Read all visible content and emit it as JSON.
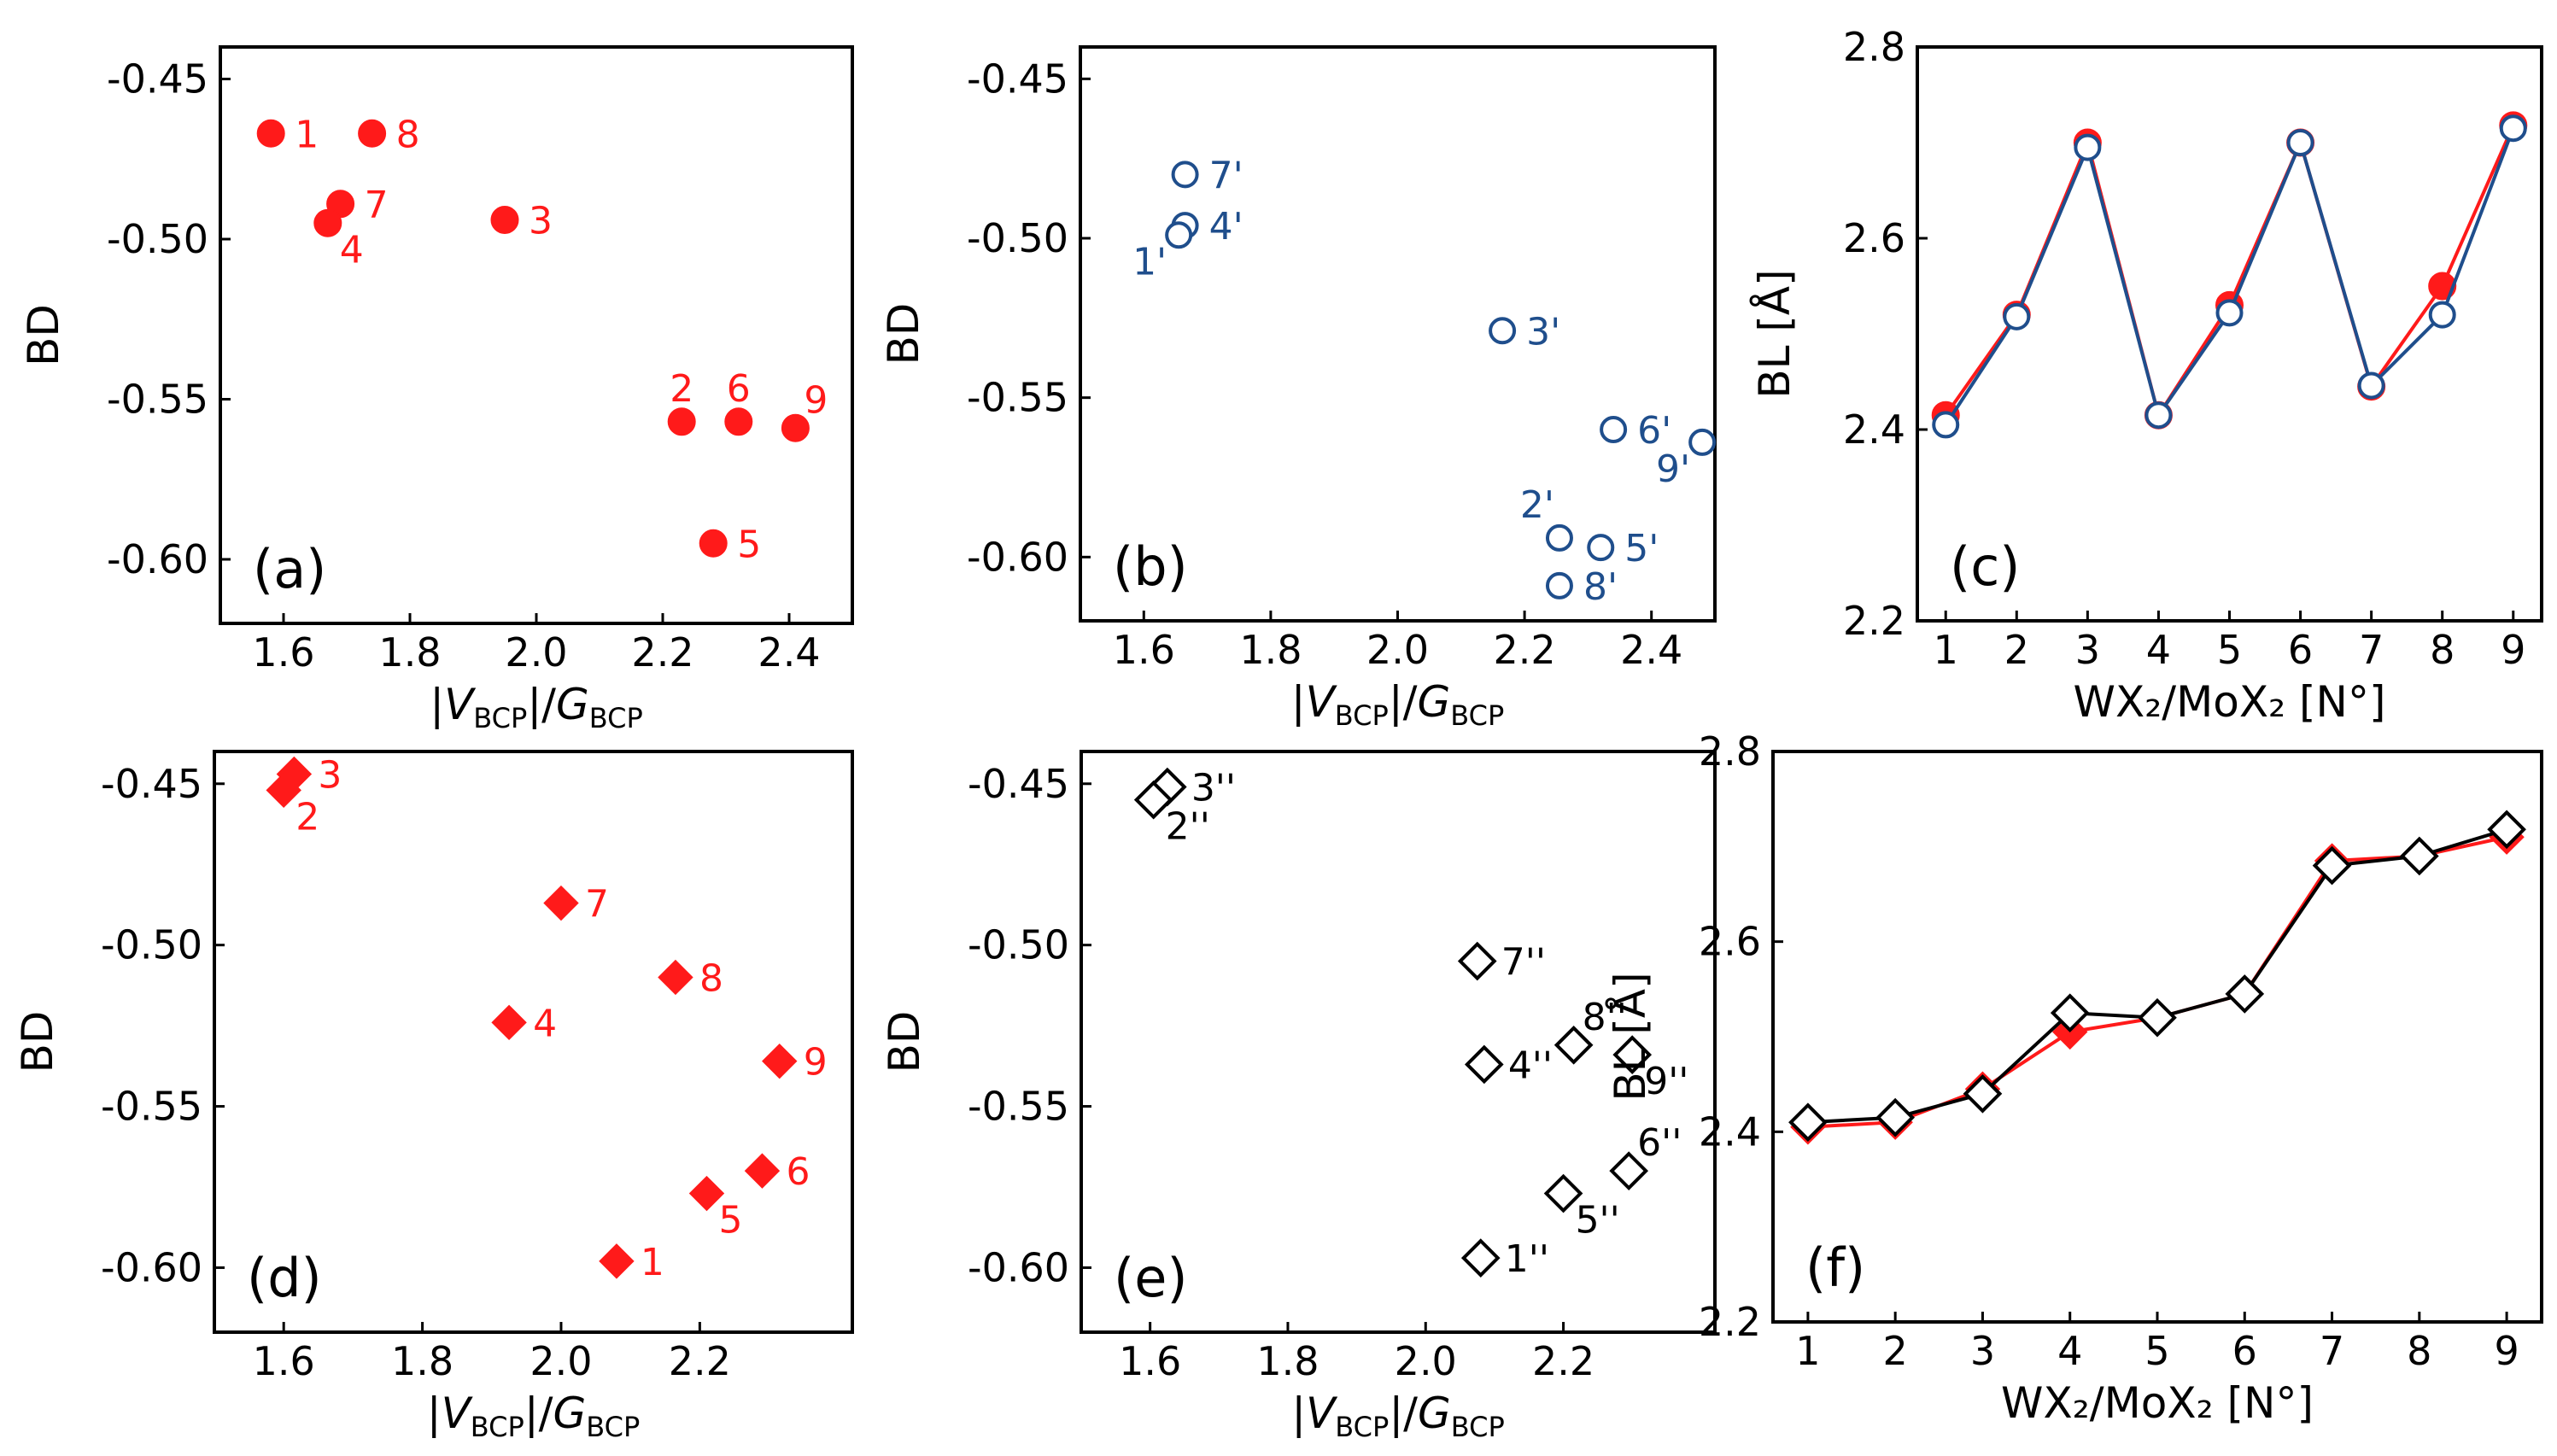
{
  "figure": {
    "colors": {
      "red": "#ff1a1a",
      "blue": "#1f4e8c",
      "black": "#000000",
      "axis": "#000000"
    }
  },
  "chart_data": [
    {
      "id": "a",
      "panel_label": "(a)",
      "type": "scatter",
      "marker": "circle-filled",
      "color": "#ff1a1a",
      "xlabel": "|V_BCP|/G_BCP",
      "ylabel": "BD",
      "xlim": [
        1.5,
        2.5
      ],
      "ylim": [
        -0.62,
        -0.44
      ],
      "xticks": [
        1.6,
        1.8,
        2.0,
        2.2,
        2.4
      ],
      "xtick_labels": [
        "1.6",
        "1.8",
        "2.0",
        "2.2",
        "2.4"
      ],
      "yticks": [
        -0.45,
        -0.5,
        -0.55,
        -0.6
      ],
      "ytick_labels": [
        "-0.45",
        "-0.50",
        "-0.55",
        "-0.60"
      ],
      "points": [
        {
          "label": "1",
          "x": 1.58,
          "y": -0.467,
          "lpos": "right"
        },
        {
          "label": "8",
          "x": 1.74,
          "y": -0.467,
          "lpos": "right"
        },
        {
          "label": "7",
          "x": 1.69,
          "y": -0.489,
          "lpos": "right"
        },
        {
          "label": "4",
          "x": 1.67,
          "y": -0.495,
          "lpos": "below-right"
        },
        {
          "label": "3",
          "x": 1.95,
          "y": -0.494,
          "lpos": "right"
        },
        {
          "label": "2",
          "x": 2.23,
          "y": -0.557,
          "lpos": "above"
        },
        {
          "label": "6",
          "x": 2.32,
          "y": -0.557,
          "lpos": "above"
        },
        {
          "label": "9",
          "x": 2.41,
          "y": -0.559,
          "lpos": "above-right"
        },
        {
          "label": "5",
          "x": 2.28,
          "y": -0.595,
          "lpos": "right"
        }
      ]
    },
    {
      "id": "b",
      "panel_label": "(b)",
      "type": "scatter",
      "marker": "circle-open",
      "color": "#1f4e8c",
      "xlabel": "|V_BCP|/G_BCP",
      "ylabel": "BD",
      "xlim": [
        1.5,
        2.5
      ],
      "ylim": [
        -0.62,
        -0.44
      ],
      "xticks": [
        1.6,
        1.8,
        2.0,
        2.2,
        2.4
      ],
      "xtick_labels": [
        "1.6",
        "1.8",
        "2.0",
        "2.2",
        "2.4"
      ],
      "yticks": [
        -0.45,
        -0.5,
        -0.55,
        -0.6
      ],
      "ytick_labels": [
        "-0.45",
        "-0.50",
        "-0.55",
        "-0.60"
      ],
      "points": [
        {
          "label": "7'",
          "x": 1.665,
          "y": -0.48,
          "lpos": "right"
        },
        {
          "label": "4'",
          "x": 1.665,
          "y": -0.496,
          "lpos": "right"
        },
        {
          "label": "1'",
          "x": 1.655,
          "y": -0.499,
          "lpos": "below-left"
        },
        {
          "label": "3'",
          "x": 2.165,
          "y": -0.529,
          "lpos": "right"
        },
        {
          "label": "6'",
          "x": 2.34,
          "y": -0.56,
          "lpos": "right"
        },
        {
          "label": "9'",
          "x": 2.48,
          "y": -0.564,
          "lpos": "below-left"
        },
        {
          "label": "2'",
          "x": 2.255,
          "y": -0.594,
          "lpos": "above-left"
        },
        {
          "label": "5'",
          "x": 2.32,
          "y": -0.597,
          "lpos": "right"
        },
        {
          "label": "8'",
          "x": 2.255,
          "y": -0.609,
          "lpos": "right"
        }
      ]
    },
    {
      "id": "c",
      "panel_label": "(c)",
      "type": "line",
      "color": "#1f4e8c",
      "xlabel": "WX₂/MoX₂ [N°]",
      "ylabel": "BL [Å]",
      "xlim": [
        0.6,
        9.4
      ],
      "ylim": [
        2.2,
        2.8
      ],
      "xticks": [
        1,
        2,
        3,
        4,
        5,
        6,
        7,
        8,
        9
      ],
      "xtick_labels": [
        "1",
        "2",
        "3",
        "4",
        "5",
        "6",
        "7",
        "8",
        "9"
      ],
      "yticks": [
        2.2,
        2.4,
        2.6,
        2.8
      ],
      "ytick_labels": [
        "2.2",
        "2.4",
        "2.6",
        "2.8"
      ],
      "x": [
        1,
        2,
        3,
        4,
        5,
        6,
        7,
        8,
        9
      ],
      "series": [
        {
          "name": "filled",
          "color": "#ff1a1a",
          "marker": "circle-filled",
          "values": [
            2.415,
            2.52,
            2.7,
            2.415,
            2.53,
            2.7,
            2.445,
            2.55,
            2.718
          ]
        },
        {
          "name": "open",
          "color": "#1f4e8c",
          "marker": "circle-open",
          "values": [
            2.405,
            2.518,
            2.695,
            2.415,
            2.522,
            2.7,
            2.446,
            2.52,
            2.715
          ]
        }
      ]
    },
    {
      "id": "d",
      "panel_label": "(d)",
      "type": "scatter",
      "marker": "diamond-filled",
      "color": "#ff1a1a",
      "xlabel": "|V_BCP|/G_BCP",
      "ylabel": "BD",
      "xlim": [
        1.5,
        2.42
      ],
      "ylim": [
        -0.62,
        -0.44
      ],
      "xticks": [
        1.6,
        1.8,
        2.0,
        2.2
      ],
      "xtick_labels": [
        "1.6",
        "1.8",
        "2.0",
        "2.2"
      ],
      "yticks": [
        -0.45,
        -0.5,
        -0.55,
        -0.6
      ],
      "ytick_labels": [
        "-0.45",
        "-0.50",
        "-0.55",
        "-0.60"
      ],
      "points": [
        {
          "label": "3",
          "x": 1.615,
          "y": -0.447,
          "lpos": "right"
        },
        {
          "label": "2",
          "x": 1.6,
          "y": -0.452,
          "lpos": "below-right"
        },
        {
          "label": "7",
          "x": 2.0,
          "y": -0.487,
          "lpos": "right"
        },
        {
          "label": "8",
          "x": 2.165,
          "y": -0.51,
          "lpos": "right"
        },
        {
          "label": "4",
          "x": 1.925,
          "y": -0.524,
          "lpos": "right"
        },
        {
          "label": "9",
          "x": 2.315,
          "y": -0.536,
          "lpos": "right"
        },
        {
          "label": "6",
          "x": 2.29,
          "y": -0.57,
          "lpos": "right"
        },
        {
          "label": "5",
          "x": 2.21,
          "y": -0.577,
          "lpos": "below-right"
        },
        {
          "label": "1",
          "x": 2.08,
          "y": -0.598,
          "lpos": "right"
        }
      ]
    },
    {
      "id": "e",
      "panel_label": "(e)",
      "type": "scatter",
      "marker": "diamond-open",
      "color": "#000000",
      "xlabel": "|V_BCP|/G_BCP",
      "ylabel": "BD",
      "xlim": [
        1.5,
        2.42
      ],
      "ylim": [
        -0.62,
        -0.44
      ],
      "xticks": [
        1.6,
        1.8,
        2.0,
        2.2
      ],
      "xtick_labels": [
        "1.6",
        "1.8",
        "2.0",
        "2.2"
      ],
      "yticks": [
        -0.45,
        -0.5,
        -0.55,
        -0.6
      ],
      "ytick_labels": [
        "-0.45",
        "-0.50",
        "-0.55",
        "-0.60"
      ],
      "points": [
        {
          "label": "3''",
          "x": 1.625,
          "y": -0.451,
          "lpos": "right"
        },
        {
          "label": "2''",
          "x": 1.605,
          "y": -0.455,
          "lpos": "below-right"
        },
        {
          "label": "7''",
          "x": 2.075,
          "y": -0.505,
          "lpos": "right"
        },
        {
          "label": "8''",
          "x": 2.215,
          "y": -0.531,
          "lpos": "above-right"
        },
        {
          "label": "4''",
          "x": 2.085,
          "y": -0.537,
          "lpos": "right"
        },
        {
          "label": "9''",
          "x": 2.3,
          "y": -0.534,
          "lpos": "below-right"
        },
        {
          "label": "6''",
          "x": 2.295,
          "y": -0.57,
          "lpos": "above-right"
        },
        {
          "label": "5''",
          "x": 2.2,
          "y": -0.577,
          "lpos": "below-right"
        },
        {
          "label": "1''",
          "x": 2.08,
          "y": -0.597,
          "lpos": "right"
        }
      ]
    },
    {
      "id": "f",
      "panel_label": "(f)",
      "type": "line",
      "color": "#000000",
      "xlabel": "WX₂/MoX₂ [N°]",
      "ylabel": "BL [Å]",
      "xlim": [
        0.6,
        9.4
      ],
      "ylim": [
        2.2,
        2.8
      ],
      "xticks": [
        1,
        2,
        3,
        4,
        5,
        6,
        7,
        8,
        9
      ],
      "xtick_labels": [
        "1",
        "2",
        "3",
        "4",
        "5",
        "6",
        "7",
        "8",
        "9"
      ],
      "yticks": [
        2.2,
        2.4,
        2.6,
        2.8
      ],
      "ytick_labels": [
        "2.2",
        "2.4",
        "2.6",
        "2.8"
      ],
      "x": [
        1,
        2,
        3,
        4,
        5,
        6,
        7,
        8,
        9
      ],
      "series": [
        {
          "name": "filled",
          "color": "#ff1a1a",
          "marker": "diamond-filled",
          "values": [
            2.405,
            2.41,
            2.445,
            2.505,
            2.52,
            2.545,
            2.685,
            2.69,
            2.71
          ]
        },
        {
          "name": "open",
          "color": "#000000",
          "marker": "diamond-open",
          "values": [
            2.41,
            2.415,
            2.44,
            2.525,
            2.52,
            2.545,
            2.68,
            2.69,
            2.718
          ]
        }
      ]
    }
  ]
}
